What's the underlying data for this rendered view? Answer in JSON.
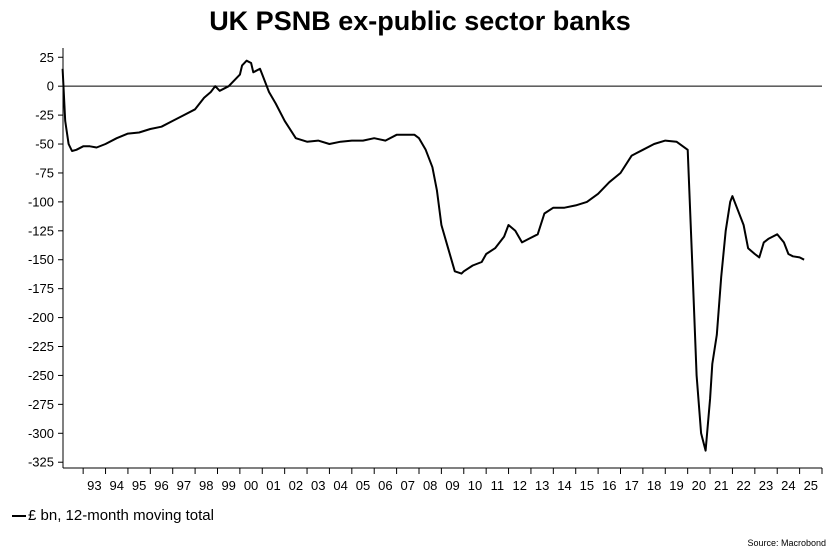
{
  "title": "UK PSNB ex-public sector banks",
  "source": "Source: Macrobond",
  "chart_data": {
    "type": "line",
    "title": "UK PSNB ex-public sector banks",
    "xlabel": "",
    "ylabel": "",
    "ylim": [
      -330,
      33
    ],
    "xlim": [
      1992.1,
      2026.0
    ],
    "yticks": [
      25,
      0,
      -25,
      -50,
      -75,
      -100,
      -125,
      -150,
      -175,
      -200,
      -225,
      -250,
      -275,
      -300,
      -325
    ],
    "xtick_labels": [
      "93",
      "94",
      "95",
      "96",
      "97",
      "98",
      "99",
      "00",
      "01",
      "02",
      "03",
      "04",
      "05",
      "06",
      "07",
      "08",
      "09",
      "10",
      "11",
      "12",
      "13",
      "14",
      "15",
      "16",
      "17",
      "18",
      "19",
      "20",
      "21",
      "22",
      "23",
      "24",
      "25"
    ],
    "xtick_years": [
      1993,
      1994,
      1995,
      1996,
      1997,
      1998,
      1999,
      2000,
      2001,
      2002,
      2003,
      2004,
      2005,
      2006,
      2007,
      2008,
      2009,
      2010,
      2011,
      2012,
      2013,
      2014,
      2015,
      2016,
      2017,
      2018,
      2019,
      2020,
      2021,
      2022,
      2023,
      2024,
      2025
    ],
    "zero_line": true,
    "grid": false,
    "legend_position": "bottom-left",
    "line_color": "#000000",
    "series": [
      {
        "name": "£ bn, 12-month moving total",
        "x": [
          1992.08,
          1992.2,
          1992.35,
          1992.5,
          1992.7,
          1993.0,
          1993.3,
          1993.6,
          1994.0,
          1994.5,
          1995.0,
          1995.5,
          1996.0,
          1996.5,
          1997.0,
          1997.5,
          1998.0,
          1998.4,
          1998.7,
          1998.9,
          1999.1,
          1999.5,
          2000.0,
          2000.1,
          2000.3,
          2000.5,
          2000.6,
          2000.9,
          2001.0,
          2001.3,
          2001.6,
          2002.0,
          2002.5,
          2003.0,
          2003.5,
          2004.0,
          2004.5,
          2005.0,
          2005.5,
          2006.0,
          2006.5,
          2007.0,
          2007.5,
          2007.8,
          2008.0,
          2008.3,
          2008.6,
          2008.8,
          2009.0,
          2009.3,
          2009.6,
          2009.9,
          2010.0,
          2010.4,
          2010.8,
          2011.0,
          2011.4,
          2011.8,
          2012.0,
          2012.3,
          2012.6,
          2012.9,
          2013.3,
          2013.6,
          2014.0,
          2014.5,
          2015.0,
          2015.5,
          2016.0,
          2016.5,
          2017.0,
          2017.5,
          2018.0,
          2018.5,
          2019.0,
          2019.5,
          2020.0,
          2020.2,
          2020.4,
          2020.6,
          2020.8,
          2021.0,
          2021.1,
          2021.3,
          2021.5,
          2021.7,
          2021.9,
          2022.0,
          2022.2,
          2022.5,
          2022.7,
          2023.0,
          2023.2,
          2023.4,
          2023.6,
          2023.8,
          2024.0,
          2024.3,
          2024.5,
          2024.7,
          2025.0,
          2025.2
        ],
        "values": [
          15,
          -30,
          -50,
          -56,
          -55,
          -52,
          -52,
          -53,
          -50,
          -45,
          -41,
          -40,
          -37,
          -35,
          -30,
          -25,
          -20,
          -10,
          -5,
          0,
          -4,
          0,
          10,
          18,
          22,
          20,
          12,
          15,
          10,
          -5,
          -15,
          -30,
          -45,
          -48,
          -47,
          -50,
          -48,
          -47,
          -47,
          -45,
          -47,
          -42,
          -42,
          -42,
          -45,
          -55,
          -70,
          -90,
          -120,
          -140,
          -160,
          -162,
          -160,
          -155,
          -152,
          -145,
          -140,
          -130,
          -120,
          -125,
          -135,
          -132,
          -128,
          -110,
          -105,
          -105,
          -103,
          -100,
          -93,
          -83,
          -75,
          -60,
          -55,
          -50,
          -47,
          -48,
          -55,
          -150,
          -250,
          -300,
          -315,
          -270,
          -240,
          -215,
          -165,
          -125,
          -100,
          -95,
          -105,
          -120,
          -140,
          -145,
          -148,
          -135,
          -132,
          -130,
          -128,
          -135,
          -145,
          -147,
          -148,
          -150
        ]
      }
    ]
  }
}
